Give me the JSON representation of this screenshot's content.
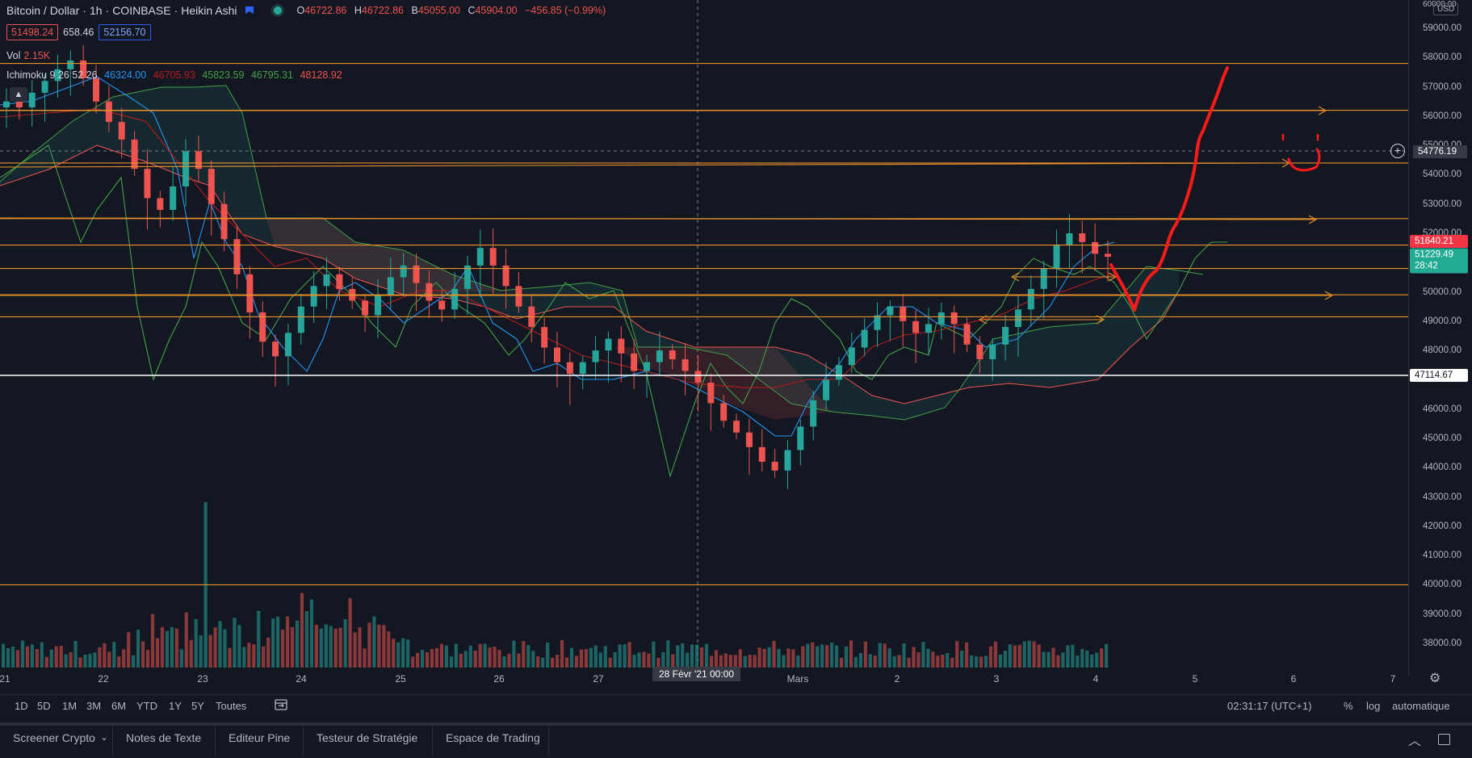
{
  "header": {
    "symbol": "Bitcoin / Dollar",
    "interval": "1h",
    "exchange": "COINBASE",
    "chart_type": "Heikin Ashi",
    "ohlc": {
      "o_key": "O",
      "o": "46722.86",
      "h_key": "H",
      "h": "46722.86",
      "l_key": "B",
      "l": "45055.00",
      "c_key": "C",
      "c": "45904.00",
      "change": "−456.85 (−0.99%)"
    },
    "bid": "51498.24",
    "spread": "658.46",
    "ask": "52156.70"
  },
  "volume_legend": {
    "label": "Vol",
    "value": "2.15K"
  },
  "ichimoku_legend": {
    "label": "Ichimoku 9 26 52 26",
    "v1": "46324.00",
    "v2": "46705.93",
    "v3": "45823.59",
    "v4": "46795.31",
    "v5": "48128.92"
  },
  "colors": {
    "background": "#131722",
    "up": "#26a69a",
    "down": "#ef5350",
    "conversion_line": "#2196f3",
    "base_line": "#b71c1c",
    "lagging_span": "#43a047",
    "horizontal_lines": "#e8902a",
    "annotation": "#ff0000"
  },
  "price_axis": {
    "currency": "USD",
    "ticks": [
      "59000.00",
      "58000.00",
      "57000.00",
      "56000.00",
      "55000.00",
      "54000.00",
      "53000.00",
      "52000.00",
      "51000.00",
      "50000.00",
      "49000.00",
      "48000.00",
      "47000.00",
      "46000.00",
      "45000.00",
      "44000.00",
      "43000.00",
      "42000.00",
      "41000.00",
      "40000.00",
      "39000.00",
      "38000.00"
    ],
    "top_tick": "60000.00",
    "crosshair_price": "54776.19",
    "label_ask": "51640.21",
    "label_last": "51229.49",
    "label_countdown": "28:42",
    "label_line": "47114.67"
  },
  "time_axis": {
    "ticks": [
      "21",
      "22",
      "23",
      "24",
      "25",
      "26",
      "27",
      "Mars",
      "2",
      "3",
      "4",
      "5",
      "6",
      "7"
    ],
    "crosshair_label": "28 Févr '21   00:00"
  },
  "range_bar": {
    "ranges": [
      "1D",
      "5D",
      "1M",
      "3M",
      "6M",
      "YTD",
      "1Y",
      "5Y",
      "Toutes"
    ],
    "clock": "02:31:17 (UTC+1)",
    "percent": "%",
    "log": "log",
    "auto": "automatique"
  },
  "panel_tabs": [
    "Screener Crypto",
    "Notes de Texte",
    "Editeur Pine",
    "Testeur de Stratégie",
    "Espace de Trading"
  ],
  "horizontal_levels": [
    57800,
    56200,
    54400,
    52500,
    51600,
    50800,
    49900,
    49150,
    47114.67,
    40000
  ],
  "chart_data": {
    "type": "candlestick",
    "y_axis_range": [
      37000,
      60000
    ],
    "candles_ha_close": [
      56500,
      56300,
      56800,
      57200,
      57600,
      57900,
      57300,
      56500,
      55800,
      55200,
      54200,
      53200,
      52800,
      53600,
      54800,
      54200,
      53000,
      51800,
      50600,
      49300,
      48300,
      47800,
      48600,
      49500,
      50200,
      50600,
      50100,
      49700,
      49200,
      49900,
      50500,
      50900,
      50300,
      49700,
      49400,
      50100,
      50900,
      51500,
      50900,
      50200,
      49500,
      48800,
      48100,
      47600,
      47200,
      47600,
      48000,
      48400,
      47900,
      47300,
      47600,
      48000,
      47700,
      47300,
      46900,
      46200,
      45600,
      45200,
      44700,
      44200,
      43900,
      44600,
      45400,
      46300,
      47000,
      47500,
      48100,
      48700,
      49200,
      49500,
      49000,
      48600,
      48900,
      49300,
      48900,
      48200,
      47700,
      48200,
      48800,
      49400,
      50100,
      50800,
      51600,
      52000,
      51700,
      51300,
      51200
    ],
    "annotation": "hand-drawn red projection path"
  }
}
